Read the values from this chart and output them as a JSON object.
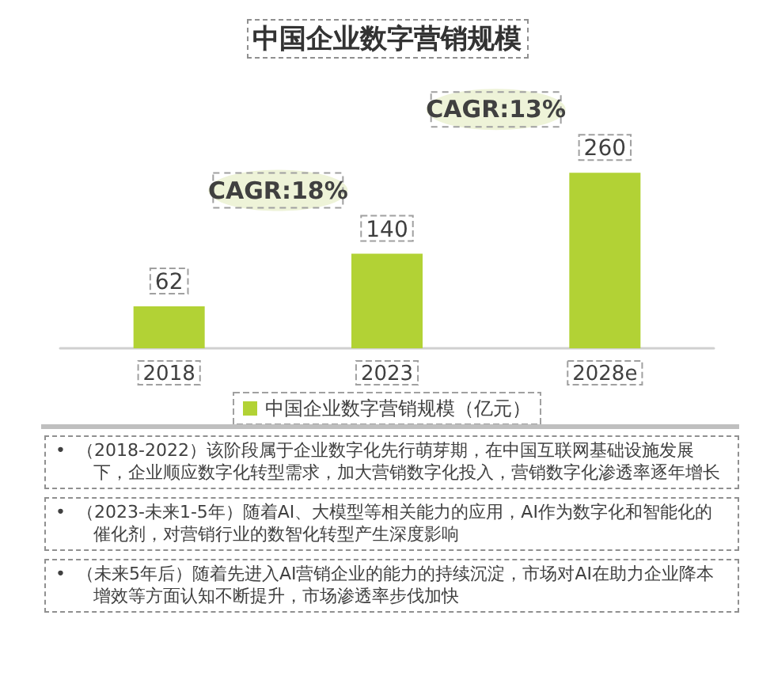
{
  "chart_data": {
    "type": "bar",
    "title": "中国企业数字营销规模",
    "categories": [
      "2018",
      "2023",
      "2028e"
    ],
    "series": [
      {
        "name": "中国企业数字营销规模（亿元）",
        "color": "#b2d235",
        "values": [
          62,
          140,
          260
        ]
      }
    ],
    "data_labels": true,
    "grid": false,
    "legend": "bottom",
    "annotations": [
      "CAGR:18%",
      "CAGR:13%",
      "•  （2018-2022）该阶段属于企业数字化先行萌芽期，在中国互联网基础设施发展下，企业顺应数字化转型需求，加大营销数字化投入，营销数字化渗透率逐年增长",
      "•  （2023-未来1-5年）随着AI、大模型等相关能力的应用，AI作为数字化和智能化的催化剂，对营销行业的数智化转型产生深度影响",
      "•  （未来5年后）随着先进入AI营销企业的能力的持续沉淀，市场对AI在助力企业降本增效等方面认知不断提升，市场渗透率步伐加快"
    ]
  }
}
